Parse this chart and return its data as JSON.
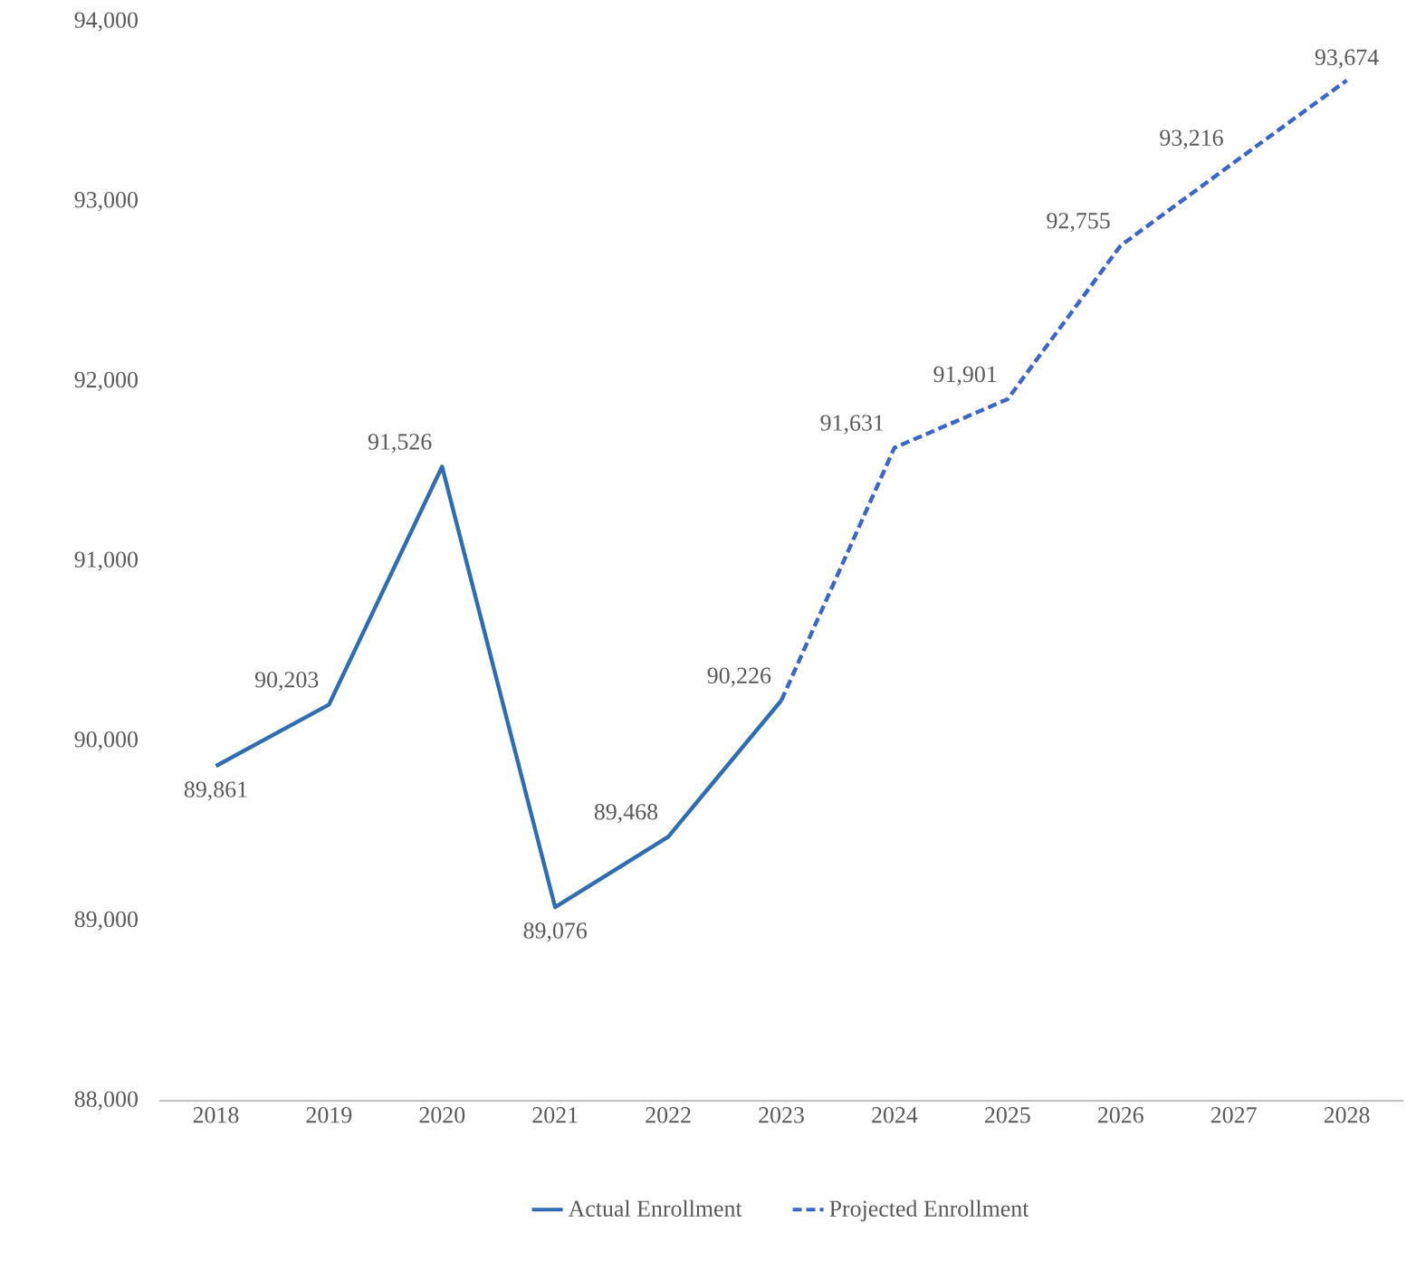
{
  "chart_data": {
    "type": "line",
    "categories": [
      "2018",
      "2019",
      "2020",
      "2021",
      "2022",
      "2023",
      "2024",
      "2025",
      "2026",
      "2027",
      "2028"
    ],
    "series": [
      {
        "name": "Actual Enrollment",
        "color": "#2e6db4",
        "line_style": "solid",
        "values": [
          89861,
          90203,
          91526,
          89076,
          89468,
          90226,
          null,
          null,
          null,
          null,
          null
        ],
        "value_labels": [
          "89,861",
          "90,203",
          "91,526",
          "89,076",
          "89,468",
          "90,226",
          null,
          null,
          null,
          null,
          null
        ]
      },
      {
        "name": "Projected Enrollment",
        "color": "#3a66c8",
        "line_style": "dashed",
        "values": [
          null,
          null,
          null,
          null,
          null,
          90226,
          91631,
          91901,
          92755,
          93216,
          93674
        ],
        "value_labels": [
          null,
          null,
          null,
          null,
          null,
          null,
          "91,631",
          "91,901",
          "92,755",
          "93,216",
          "93,674"
        ]
      }
    ],
    "ylim": [
      88000,
      94000
    ],
    "yticks": [
      {
        "value": 88000,
        "label": "88,000"
      },
      {
        "value": 89000,
        "label": "89,000"
      },
      {
        "value": 90000,
        "label": "90,000"
      },
      {
        "value": 91000,
        "label": "91,000"
      },
      {
        "value": 92000,
        "label": "92,000"
      },
      {
        "value": 93000,
        "label": "93,000"
      },
      {
        "value": 94000,
        "label": "94,000"
      }
    ],
    "grid": false,
    "legend": "bottom",
    "marker": "none"
  }
}
